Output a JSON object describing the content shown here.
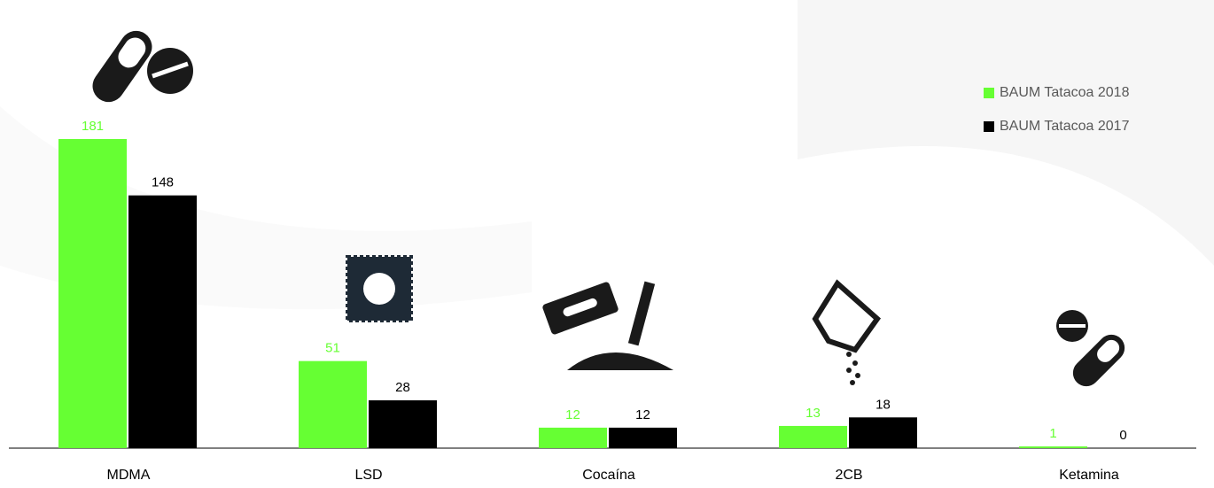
{
  "chart_data": {
    "type": "bar",
    "categories": [
      "MDMA",
      "LSD",
      "Cocaína",
      "2CB",
      "Ketamina"
    ],
    "series": [
      {
        "name": "BAUM Tatacoa 2018",
        "color": "#66ff33",
        "values": [
          181,
          51,
          12,
          13,
          1
        ]
      },
      {
        "name": "BAUM Tatacoa 2017",
        "color": "#000000",
        "values": [
          148,
          28,
          12,
          18,
          0
        ]
      }
    ],
    "legend": "upper right"
  }
}
